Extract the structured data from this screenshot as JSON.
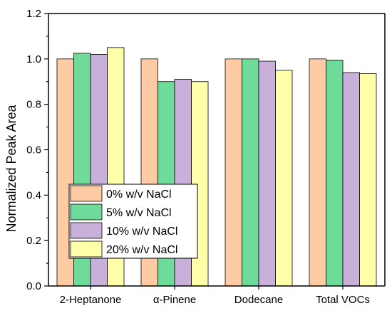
{
  "chart_data": {
    "type": "bar",
    "title": "",
    "xlabel": "",
    "ylabel": "Normalized Peak Area",
    "ylim": [
      0,
      1.2
    ],
    "yticks": [
      "0.0",
      "0.2",
      "0.4",
      "0.6",
      "0.8",
      "1.0",
      "1.2"
    ],
    "categories": [
      "2-Heptanone",
      "α-Pinene",
      "Dodecane",
      "Total VOCs"
    ],
    "series": [
      {
        "name": "0% w/v NaCl",
        "color": "#FFCBA4",
        "values": [
          1.0,
          1.0,
          1.0,
          1.0
        ]
      },
      {
        "name": "5% w/v NaCl",
        "color": "#6EDB9A",
        "values": [
          1.025,
          0.9,
          1.0,
          0.995
        ]
      },
      {
        "name": "10% w/v NaCl",
        "color": "#C8B0DA",
        "values": [
          1.02,
          0.91,
          0.99,
          0.94
        ]
      },
      {
        "name": "20% w/v NaCl",
        "color": "#FFFFAA",
        "values": [
          1.05,
          0.9,
          0.95,
          0.935
        ]
      }
    ],
    "legend_position": "lower-left",
    "grid": false
  }
}
